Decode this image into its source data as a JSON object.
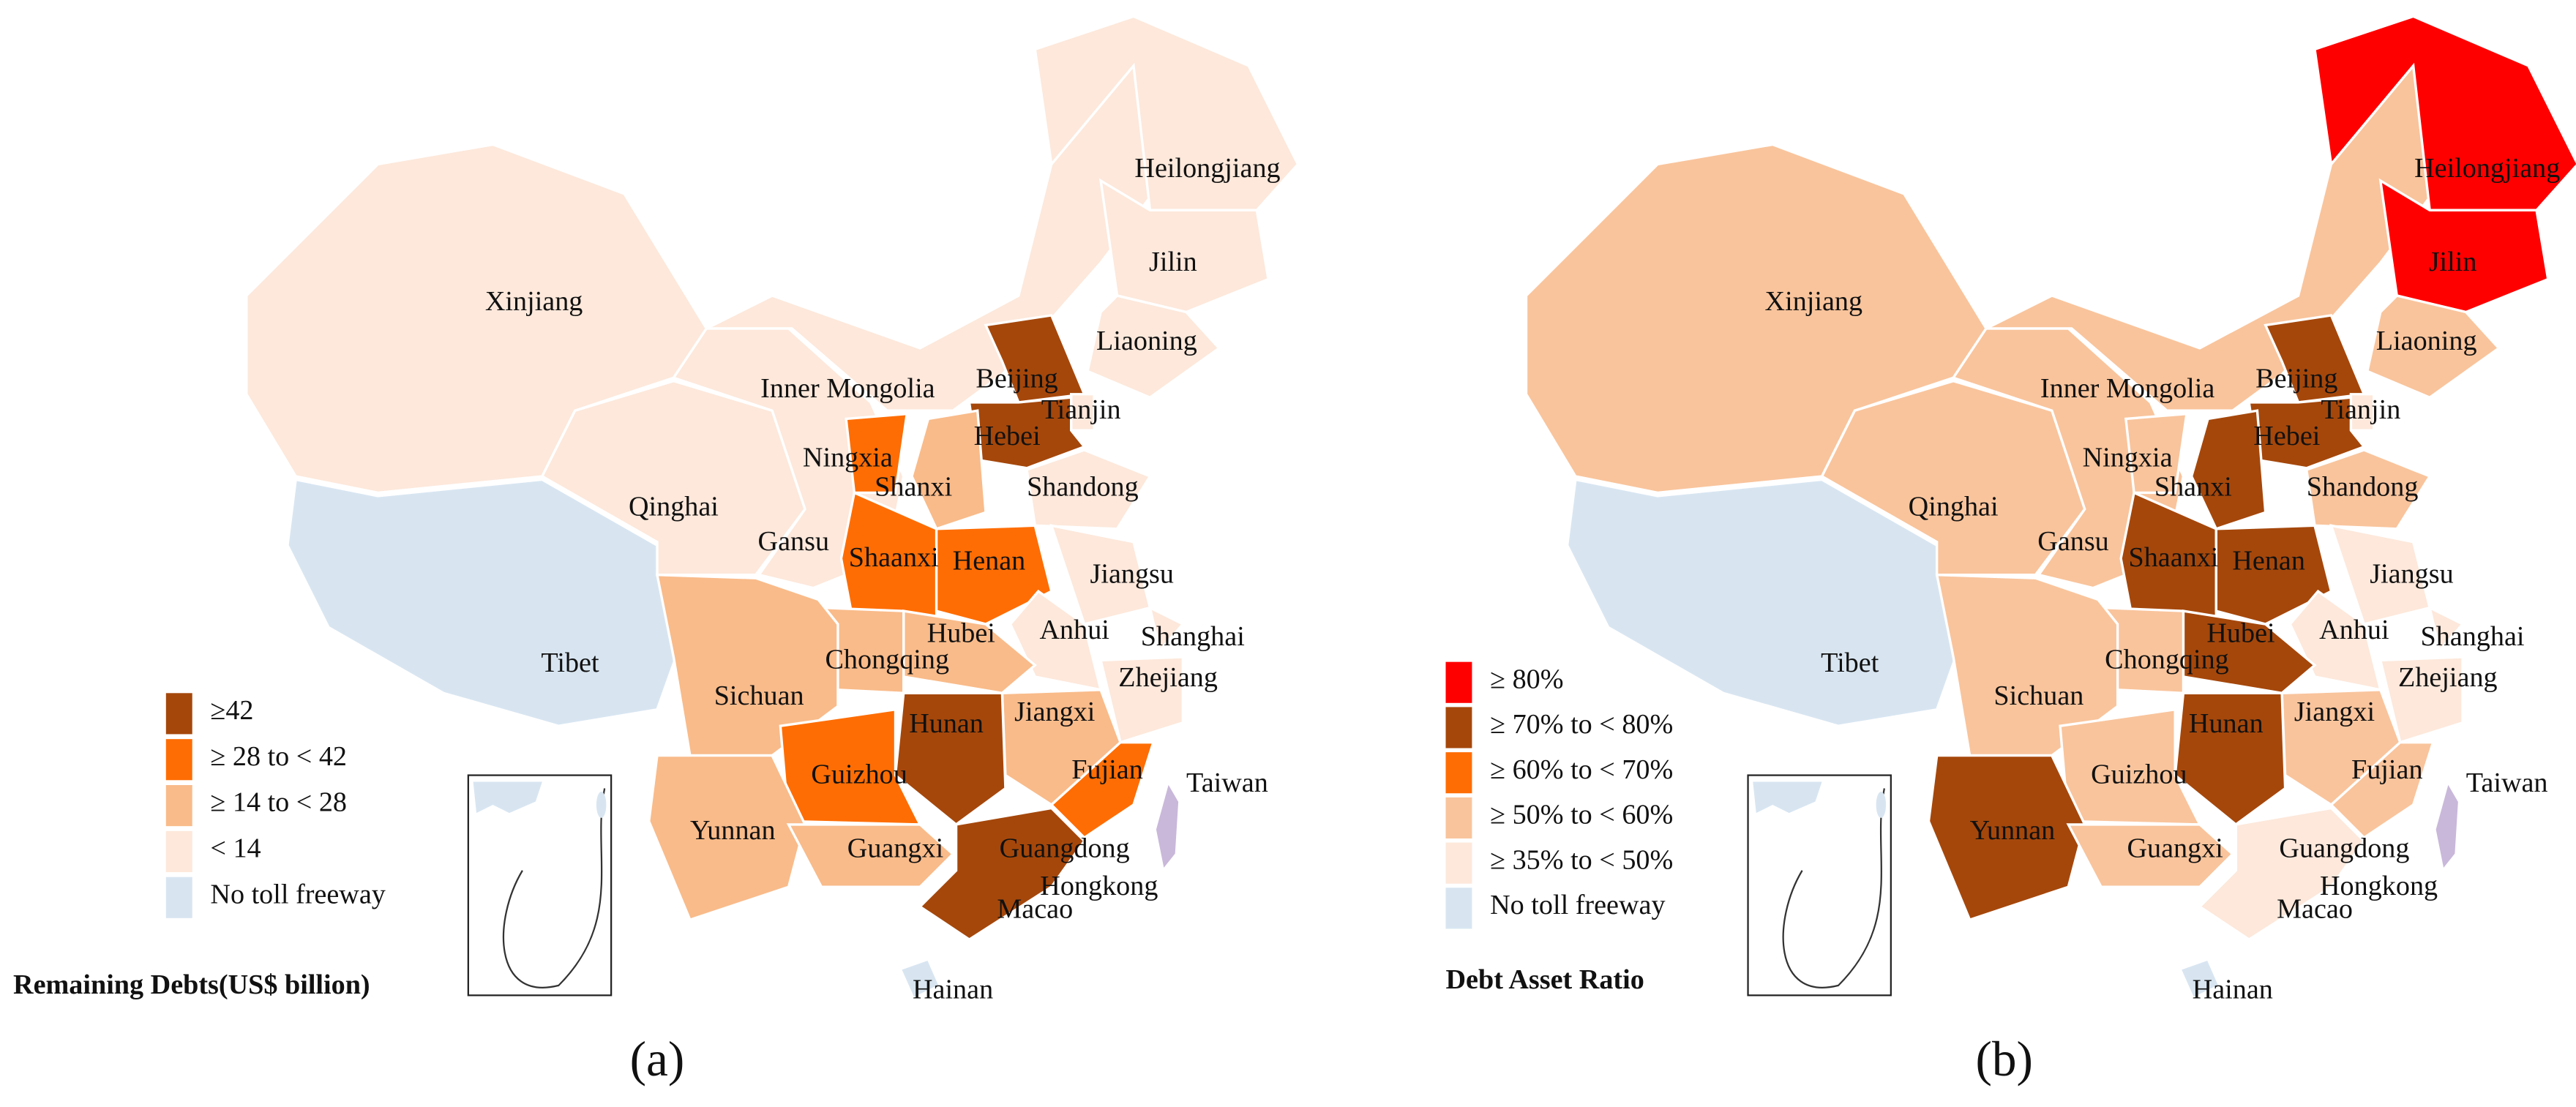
{
  "panels": [
    {
      "label": "(a)",
      "legend_title": "Remaining Debts(US$ billion)",
      "legend": [
        {
          "label": "≥42",
          "color": "#a5470b"
        },
        {
          "label": "≥ 28 to < 42",
          "color": "#fe6d04"
        },
        {
          "label": "≥ 14 to < 28",
          "color": "#f9bb8a"
        },
        {
          "label": "< 14",
          "color": "#fde8db"
        },
        {
          "label": "No toll freeway",
          "color": "#d8e5f1"
        }
      ],
      "regions": [
        {
          "name": "Xinjiang",
          "color": "#fde8db"
        },
        {
          "name": "Tibet",
          "color": "#d8e5f1"
        },
        {
          "name": "Qinghai",
          "color": "#fde8db"
        },
        {
          "name": "Gansu",
          "color": "#fde8db"
        },
        {
          "name": "Inner Mongolia",
          "color": "#fde8db"
        },
        {
          "name": "Heilongjiang",
          "color": "#fde8db"
        },
        {
          "name": "Jilin",
          "color": "#fde8db"
        },
        {
          "name": "Liaoning",
          "color": "#fde8db"
        },
        {
          "name": "Beijing",
          "color": "#a5470b"
        },
        {
          "name": "Tianjin",
          "color": "#fde8db"
        },
        {
          "name": "Hebei",
          "color": "#a5470b"
        },
        {
          "name": "Shanxi",
          "color": "#f9bb8a"
        },
        {
          "name": "Shandong",
          "color": "#fde8db"
        },
        {
          "name": "Ningxia",
          "color": "#fe6d04"
        },
        {
          "name": "Shaanxi",
          "color": "#fe6d04"
        },
        {
          "name": "Henan",
          "color": "#fe6d04"
        },
        {
          "name": "Jiangsu",
          "color": "#fde8db"
        },
        {
          "name": "Anhui",
          "color": "#fde8db"
        },
        {
          "name": "Shanghai",
          "color": "#fde8db"
        },
        {
          "name": "Hubei",
          "color": "#f9bb8a"
        },
        {
          "name": "Chongqing",
          "color": "#f9bb8a"
        },
        {
          "name": "Sichuan",
          "color": "#f9bb8a"
        },
        {
          "name": "Zhejiang",
          "color": "#fde8db"
        },
        {
          "name": "Jiangxi",
          "color": "#f9bb8a"
        },
        {
          "name": "Hunan",
          "color": "#a5470b"
        },
        {
          "name": "Guizhou",
          "color": "#fe6d04"
        },
        {
          "name": "Fujian",
          "color": "#fe6d04"
        },
        {
          "name": "Yunnan",
          "color": "#f9bb8a"
        },
        {
          "name": "Guangxi",
          "color": "#f9bb8a"
        },
        {
          "name": "Guangdong",
          "color": "#a5470b"
        },
        {
          "name": "Hongkong"
        },
        {
          "name": "Macao"
        },
        {
          "name": "Taiwan",
          "color": "#c9b8da"
        },
        {
          "name": "Hainan",
          "color": "#d8e5f1"
        }
      ]
    },
    {
      "label": "(b)",
      "legend_title": "Debt Asset Ratio",
      "legend": [
        {
          "label": "≥ 80%",
          "color": "#ff0000"
        },
        {
          "label": "≥ 70% to < 80%",
          "color": "#a5470b"
        },
        {
          "label": "≥ 60% to < 70%",
          "color": "#fe6d04"
        },
        {
          "label": "≥ 50% to < 60%",
          "color": "#f9c49c"
        },
        {
          "label": "≥ 35% to < 50%",
          "color": "#fde8db"
        },
        {
          "label": "No toll freeway",
          "color": "#d8e5f1"
        }
      ],
      "regions": [
        {
          "name": "Xinjiang",
          "color": "#f9c49c"
        },
        {
          "name": "Tibet",
          "color": "#d8e5f1"
        },
        {
          "name": "Qinghai",
          "color": "#f9c49c"
        },
        {
          "name": "Gansu",
          "color": "#f9c49c"
        },
        {
          "name": "Inner Mongolia",
          "color": "#f9c49c"
        },
        {
          "name": "Heilongjiang",
          "color": "#ff0000"
        },
        {
          "name": "Jilin",
          "color": "#ff0000"
        },
        {
          "name": "Liaoning",
          "color": "#f9c49c"
        },
        {
          "name": "Beijing",
          "color": "#a5470b"
        },
        {
          "name": "Tianjin",
          "color": "#fde8db"
        },
        {
          "name": "Hebei",
          "color": "#a5470b"
        },
        {
          "name": "Shanxi",
          "color": "#a5470b"
        },
        {
          "name": "Shandong",
          "color": "#f9c49c"
        },
        {
          "name": "Ningxia",
          "color": "#f9c49c"
        },
        {
          "name": "Shaanxi",
          "color": "#a5470b"
        },
        {
          "name": "Henan",
          "color": "#a5470b"
        },
        {
          "name": "Jiangsu",
          "color": "#fde8db"
        },
        {
          "name": "Anhui",
          "color": "#fde8db"
        },
        {
          "name": "Shanghai",
          "color": "#fde8db"
        },
        {
          "name": "Hubei",
          "color": "#a5470b"
        },
        {
          "name": "Chongqing",
          "color": "#f9c49c"
        },
        {
          "name": "Sichuan",
          "color": "#f9c49c"
        },
        {
          "name": "Zhejiang",
          "color": "#fde8db"
        },
        {
          "name": "Jiangxi",
          "color": "#f9c49c"
        },
        {
          "name": "Hunan",
          "color": "#a5470b"
        },
        {
          "name": "Guizhou",
          "color": "#f9c49c"
        },
        {
          "name": "Fujian",
          "color": "#f9c49c"
        },
        {
          "name": "Yunnan",
          "color": "#a5470b"
        },
        {
          "name": "Guangxi",
          "color": "#f9c49c"
        },
        {
          "name": "Guangdong",
          "color": "#fde8db"
        },
        {
          "name": "Hongkong"
        },
        {
          "name": "Macao"
        },
        {
          "name": "Taiwan",
          "color": "#c9b8da"
        },
        {
          "name": "Hainan",
          "color": "#d8e5f1"
        }
      ]
    }
  ]
}
